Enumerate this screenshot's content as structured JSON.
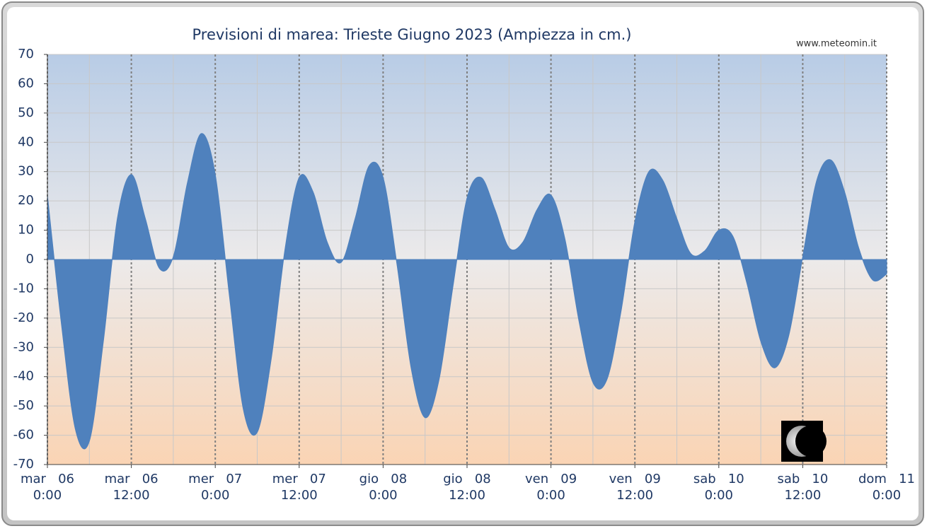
{
  "chart_data": {
    "type": "area",
    "title": "Previsioni di marea: Trieste Giugno 2023 (Ampiezza in cm.)",
    "source": "www.meteomin.it",
    "x": [
      0,
      2,
      4,
      6,
      8,
      10,
      12,
      14,
      16,
      18,
      20,
      22,
      24,
      26,
      28,
      30,
      32,
      34,
      36,
      38,
      40,
      42,
      44,
      46,
      48,
      50,
      52,
      54,
      56,
      58,
      60,
      62,
      64,
      66,
      68,
      70,
      72,
      74,
      76,
      78,
      80,
      82,
      84,
      86,
      88,
      90,
      92,
      94,
      96,
      98,
      100,
      102,
      104,
      106,
      108,
      110,
      112,
      114,
      116,
      118,
      120
    ],
    "values": [
      22,
      -22,
      -58,
      -62,
      -28,
      14,
      29,
      14,
      -3,
      1,
      26,
      43,
      29,
      -12,
      -51,
      -59,
      -34,
      4,
      28,
      23,
      6,
      -1,
      14,
      32,
      28,
      -2,
      -37,
      -54,
      -41,
      -9,
      21,
      28,
      17,
      4,
      6,
      17,
      22,
      7,
      -21,
      -42,
      -41,
      -18,
      13,
      30,
      27,
      14,
      2,
      3,
      10,
      8,
      -8,
      -28,
      -37,
      -26,
      1,
      27,
      34,
      23,
      4,
      -7,
      -5
    ],
    "color": "#4f81bd",
    "xlim": [
      0,
      120
    ],
    "xticks": [
      {
        "value": 0,
        "label": [
          "mar   06",
          "0:00"
        ]
      },
      {
        "value": 12,
        "label": [
          "mar   06",
          "12:00"
        ]
      },
      {
        "value": 24,
        "label": [
          "mer   07",
          "0:00"
        ]
      },
      {
        "value": 36,
        "label": [
          "mer   07",
          "12:00"
        ]
      },
      {
        "value": 48,
        "label": [
          "gio   08",
          "0:00"
        ]
      },
      {
        "value": 60,
        "label": [
          "gio   08",
          "12:00"
        ]
      },
      {
        "value": 72,
        "label": [
          "ven   09",
          "0:00"
        ]
      },
      {
        "value": 84,
        "label": [
          "ven   09",
          "12:00"
        ]
      },
      {
        "value": 96,
        "label": [
          "sab   10",
          "0:00"
        ]
      },
      {
        "value": 108,
        "label": [
          "sab   10",
          "12:00"
        ]
      },
      {
        "value": 120,
        "label": [
          "dom   11",
          "0:00"
        ]
      }
    ],
    "ylim": [
      -70,
      70
    ],
    "yticks": [
      -70,
      -60,
      -50,
      -40,
      -30,
      -20,
      -10,
      0,
      10,
      20,
      30,
      40,
      50,
      60,
      70
    ],
    "grid": true
  }
}
